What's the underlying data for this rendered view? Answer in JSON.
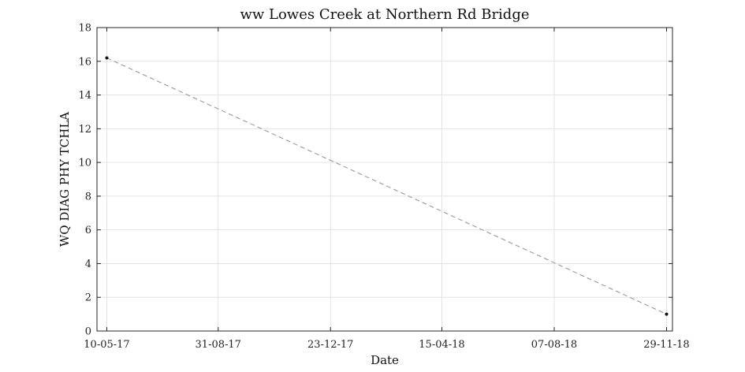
{
  "chart_data": {
    "type": "line",
    "title": "ww Lowes Creek at Northern Rd Bridge",
    "xlabel": "Date",
    "ylabel": "WQ DIAG PHY TCHLA",
    "x_tick_labels": [
      "10-05-17",
      "31-08-17",
      "23-12-17",
      "15-04-18",
      "07-08-18",
      "29-11-18"
    ],
    "x_ticks": [
      "2017-05-10",
      "2017-08-31",
      "2017-12-23",
      "2018-04-15",
      "2018-08-07",
      "2018-11-29"
    ],
    "xlim": [
      "2017-04-30",
      "2018-12-05"
    ],
    "y_tick_labels": [
      "0",
      "2",
      "4",
      "6",
      "8",
      "10",
      "12",
      "14",
      "16",
      "18"
    ],
    "ylim": [
      0,
      18
    ],
    "grid": true,
    "series": [
      {
        "x": [
          "2017-05-10",
          "2018-11-29"
        ],
        "y": [
          16.2,
          1.0
        ],
        "line_style": "dashed",
        "line_color": "#a0a0a0",
        "marker_color": "#111111"
      }
    ]
  }
}
